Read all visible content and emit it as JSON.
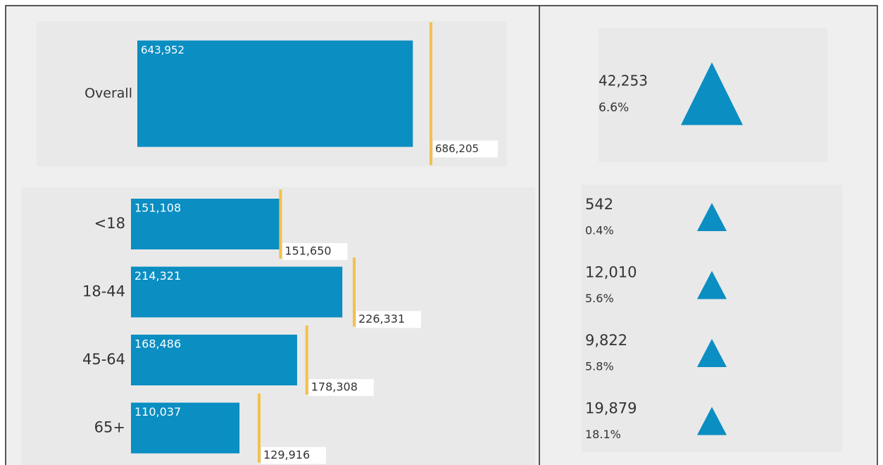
{
  "chart_data": [
    {
      "type": "bullet",
      "categories": [
        "Overall"
      ],
      "values": [
        643952
      ],
      "value_labels": [
        "643,952"
      ],
      "targets": [
        686205
      ],
      "target_labels": [
        "686,205"
      ],
      "changes": [
        42253
      ],
      "change_labels": [
        "42,253"
      ],
      "percent_changes": [
        6.6
      ],
      "percent_labels": [
        "6.6%"
      ],
      "color": "#0b8ec2",
      "target_color": "#f2c14e",
      "change_color": "#0b8ec2"
    },
    {
      "type": "bullet",
      "categories": [
        "<18",
        "18-44",
        "45-64",
        "65+"
      ],
      "values": [
        151108,
        214321,
        168486,
        110037
      ],
      "value_labels": [
        "151,108",
        "214,321",
        "168,486",
        "110,037"
      ],
      "targets": [
        151650,
        226331,
        178308,
        129916
      ],
      "target_labels": [
        "151,650",
        "226,331",
        "178,308",
        "129,916"
      ],
      "changes": [
        542,
        12010,
        9822,
        19879
      ],
      "change_labels": [
        "542",
        "12,010",
        "9,822",
        "19,879"
      ],
      "percent_changes": [
        0.4,
        5.6,
        5.8,
        18.1
      ],
      "percent_labels": [
        "0.4%",
        "5.6%",
        "5.8%",
        "18.1%"
      ],
      "color": "#0b8ec2",
      "target_color": "#f2c14e",
      "change_color": "#0b8ec2"
    }
  ]
}
